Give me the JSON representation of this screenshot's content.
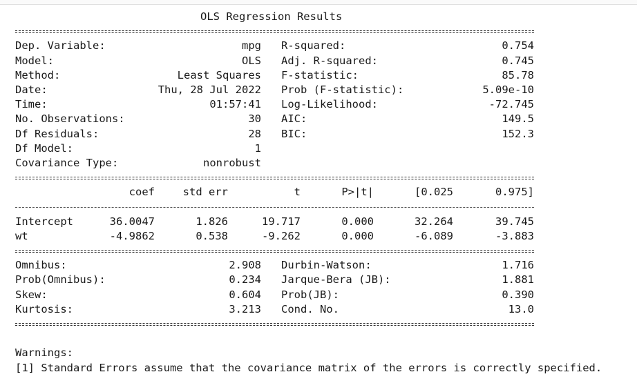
{
  "title": "OLS Regression Results",
  "summary": [
    {
      "l1": "Dep. Variable:",
      "v1": "mpg",
      "l2": "R-squared:",
      "v2": "0.754"
    },
    {
      "l1": "Model:",
      "v1": "OLS",
      "l2": "Adj. R-squared:",
      "v2": "0.745"
    },
    {
      "l1": "Method:",
      "v1": "Least Squares",
      "l2": "F-statistic:",
      "v2": "85.78"
    },
    {
      "l1": "Date:",
      "v1": "Thu, 28 Jul 2022",
      "l2": "Prob (F-statistic):",
      "v2": "5.09e-10"
    },
    {
      "l1": "Time:",
      "v1": "01:57:41",
      "l2": "Log-Likelihood:",
      "v2": "-72.745"
    },
    {
      "l1": "No. Observations:",
      "v1": "30",
      "l2": "AIC:",
      "v2": "149.5"
    },
    {
      "l1": "Df Residuals:",
      "v1": "28",
      "l2": "BIC:",
      "v2": "152.3"
    },
    {
      "l1": "Df Model:",
      "v1": "1",
      "l2": "",
      "v2": ""
    },
    {
      "l1": "Covariance Type:",
      "v1": "nonrobust",
      "l2": "",
      "v2": ""
    }
  ],
  "coef_header": [
    "coef",
    "std err",
    "t",
    "P>|t|",
    "[0.025",
    "0.975]"
  ],
  "coef_rows": [
    {
      "name": "Intercept",
      "vals": [
        "36.0047",
        "1.826",
        "19.717",
        "0.000",
        "32.264",
        "39.745"
      ]
    },
    {
      "name": "wt",
      "vals": [
        "-4.9862",
        "0.538",
        "-9.262",
        "0.000",
        "-6.089",
        "-3.883"
      ]
    }
  ],
  "diagnostics": [
    {
      "l1": "Omnibus:",
      "v1": "2.908",
      "l2": "Durbin-Watson:",
      "v2": "1.716"
    },
    {
      "l1": "Prob(Omnibus):",
      "v1": "0.234",
      "l2": "Jarque-Bera (JB):",
      "v2": "1.881"
    },
    {
      "l1": "Skew:",
      "v1": "0.604",
      "l2": "Prob(JB):",
      "v2": "0.390"
    },
    {
      "l1": "Kurtosis:",
      "v1": "3.213",
      "l2": "Cond. No.",
      "v2": "13.0"
    }
  ],
  "warnings_title": "Warnings:",
  "warnings": [
    "[1] Standard Errors assume that the covariance matrix of the errors is correctly specified."
  ]
}
